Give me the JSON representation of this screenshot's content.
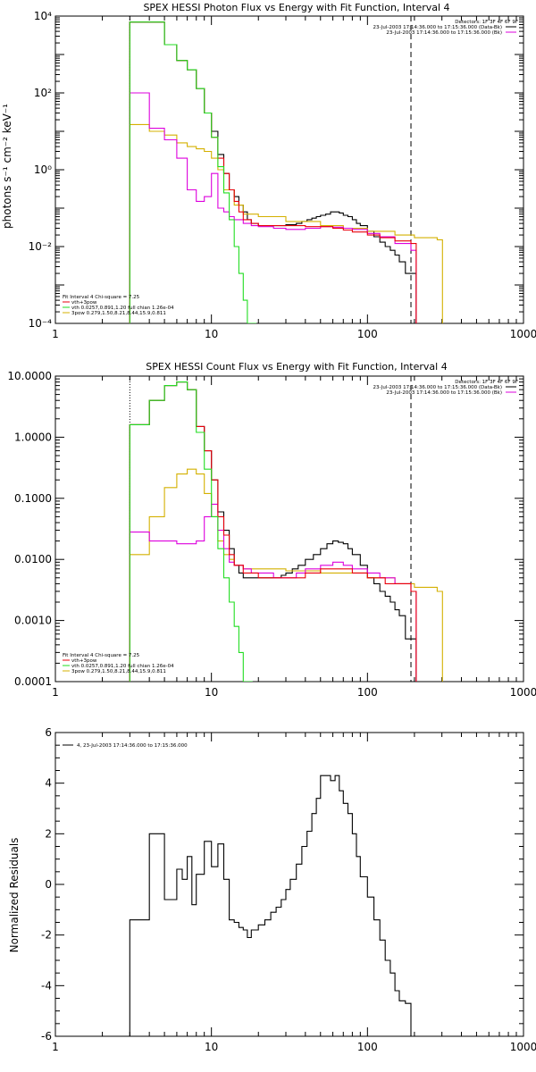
{
  "colors": {
    "black": "#000000",
    "red": "#e8000b",
    "green": "#22dd22",
    "yellow": "#d4b000",
    "magenta": "#dd00dd"
  },
  "chart_data": [
    {
      "type": "line",
      "title": "SPEX HESSI Photon Flux vs Energy with Fit Function, Interval 4",
      "xlabel": "",
      "ylabel": "photons s⁻¹ cm⁻² keV⁻¹",
      "xscale": "log",
      "yscale": "log",
      "xlim": [
        1,
        1000
      ],
      "ylim": [
        0.0001,
        10000
      ],
      "x_ticks": [
        {
          "value": 1,
          "label": "1"
        },
        {
          "value": 10,
          "label": "10"
        },
        {
          "value": 100,
          "label": "100"
        },
        {
          "value": 1000,
          "label": "1000"
        }
      ],
      "y_ticks": [
        {
          "value": 0.0001,
          "label": "10⁻⁴"
        },
        {
          "value": 0.01,
          "label": "10⁻²"
        },
        {
          "value": 1,
          "label": "10⁰"
        },
        {
          "value": 100,
          "label": "10²"
        },
        {
          "value": 10000,
          "label": "10⁴"
        }
      ],
      "vlines": [
        {
          "x": 3,
          "style": "dotted",
          "color": "black"
        },
        {
          "x": 190,
          "style": "dashed",
          "color": "black"
        }
      ],
      "legend_top": [
        "Detectors: 1F 3F 4F 6F 9F",
        "23-Jul-2003 17:14:36.000 to 17:15:36.000 (Data-Bk)",
        "23-Jul-2003 17:14:36.000 to 17:15:36.000 (Bk)"
      ],
      "legend_bottom": [
        "Fit Interval 4   Chi-square = 7.25",
        "vth+3pow",
        "vth 0.0257,0.891,1.20  full chian 1.26e-04",
        "3pow 0.279,1.50,8.21,8.44,15.9,0.811"
      ],
      "series": [
        {
          "color": "black",
          "x": [
            3,
            4,
            5,
            6,
            7,
            8,
            9,
            10,
            11,
            12,
            13,
            14,
            15,
            16,
            17,
            18,
            20,
            22,
            24,
            26,
            28,
            30,
            32,
            35,
            38,
            41,
            44,
            47,
            50,
            54,
            58,
            62,
            66,
            70,
            75,
            80,
            85,
            90,
            100,
            110,
            120,
            130,
            140,
            150,
            160,
            175,
            190
          ],
          "y": [
            7000,
            7000,
            1800,
            700,
            400,
            130,
            30,
            10,
            2.5,
            0.8,
            0.3,
            0.2,
            0.12,
            0.08,
            0.05,
            0.04,
            0.035,
            0.035,
            0.035,
            0.035,
            0.035,
            0.037,
            0.037,
            0.04,
            0.045,
            0.05,
            0.055,
            0.06,
            0.065,
            0.07,
            0.08,
            0.08,
            0.075,
            0.065,
            0.06,
            0.05,
            0.04,
            0.035,
            0.025,
            0.018,
            0.013,
            0.01,
            0.008,
            0.006,
            0.004,
            0.002,
            0.002
          ]
        },
        {
          "color": "red",
          "x": [
            3,
            4,
            5,
            6,
            7,
            8,
            9,
            10,
            11,
            12,
            13,
            14,
            15,
            16,
            18,
            20,
            22,
            25,
            30,
            40,
            50,
            60,
            70,
            80,
            100,
            120,
            150,
            190
          ],
          "y": [
            7000,
            7000,
            1800,
            700,
            400,
            130,
            30,
            7,
            2,
            0.8,
            0.3,
            0.15,
            0.08,
            0.05,
            0.04,
            0.035,
            0.035,
            0.035,
            0.035,
            0.033,
            0.033,
            0.03,
            0.027,
            0.024,
            0.02,
            0.017,
            0.014,
            0.012
          ]
        },
        {
          "color": "green",
          "x": [
            3,
            4,
            5,
            6,
            7,
            8,
            9,
            10,
            11,
            12,
            13,
            14,
            15,
            16,
            17,
            18
          ],
          "y": [
            7000,
            7000,
            1800,
            700,
            400,
            130,
            30,
            7,
            1.2,
            0.25,
            0.05,
            0.01,
            0.002,
            0.0004,
            0.0001,
            0.0001
          ]
        },
        {
          "color": "yellow",
          "x": [
            3,
            4,
            5,
            6,
            7,
            8,
            9,
            10,
            11,
            12,
            14,
            16,
            20,
            30,
            50,
            70,
            100,
            150,
            200,
            280
          ],
          "y": [
            15,
            10,
            8,
            5,
            4,
            3.5,
            3,
            2,
            1,
            0.3,
            0.12,
            0.07,
            0.06,
            0.045,
            0.035,
            0.03,
            0.025,
            0.02,
            0.017,
            0.015
          ]
        },
        {
          "color": "magenta",
          "x": [
            3,
            4,
            5,
            6,
            7,
            8,
            9,
            10,
            11,
            12,
            13,
            14,
            16,
            18,
            20,
            25,
            30,
            40,
            50,
            60,
            70,
            80,
            100,
            120,
            150,
            190
          ],
          "y": [
            100,
            12,
            6,
            2,
            0.3,
            0.15,
            0.2,
            0.8,
            0.1,
            0.08,
            0.06,
            0.05,
            0.04,
            0.035,
            0.033,
            0.03,
            0.028,
            0.03,
            0.033,
            0.032,
            0.03,
            0.028,
            0.022,
            0.018,
            0.012,
            0.008
          ]
        }
      ]
    },
    {
      "type": "line",
      "title": "SPEX HESSI Count Flux vs Energy with Fit Function, Interval 4",
      "xlabel": "",
      "ylabel": "",
      "xscale": "log",
      "yscale": "log",
      "xlim": [
        1,
        1000
      ],
      "ylim": [
        0.0001,
        10
      ],
      "x_ticks": [
        {
          "value": 1,
          "label": "1"
        },
        {
          "value": 10,
          "label": "10"
        },
        {
          "value": 100,
          "label": "100"
        },
        {
          "value": 1000,
          "label": "1000"
        }
      ],
      "y_ticks": [
        {
          "value": 0.0001,
          "label": "0.0001"
        },
        {
          "value": 0.001,
          "label": "0.0010"
        },
        {
          "value": 0.01,
          "label": "0.0100"
        },
        {
          "value": 0.1,
          "label": "0.1000"
        },
        {
          "value": 1,
          "label": "1.0000"
        },
        {
          "value": 10,
          "label": "10.0000"
        }
      ],
      "vlines": [
        {
          "x": 3,
          "style": "dotted",
          "color": "black"
        },
        {
          "x": 190,
          "style": "dashed",
          "color": "black"
        }
      ],
      "legend_top": [
        "Detectors: 1F 3F 4F 6F 9F",
        "23-Jul-2003 17:14:36.000 to 17:15:36.000 (Data-Bk)",
        "23-Jul-2003 17:14:36.000 to 17:15:36.000 (Bk)"
      ],
      "legend_bottom": [
        "Fit Interval 4   Chi-square = 7.25",
        "vth+3pow",
        "vth 0.0257,0.891,1.20  full chian 1.26e-04",
        "3pow 0.279,1.50,8.21,8.44,15.9,0.811"
      ],
      "series": [
        {
          "color": "black",
          "x": [
            3,
            3.5,
            4,
            5,
            6,
            7,
            8,
            9,
            10,
            11,
            12,
            13,
            14,
            15,
            16,
            18,
            20,
            22,
            25,
            28,
            30,
            33,
            36,
            40,
            45,
            50,
            55,
            60,
            65,
            70,
            75,
            80,
            90,
            100,
            110,
            120,
            130,
            140,
            150,
            160,
            175,
            190
          ],
          "y": [
            1.6,
            1.6,
            4,
            7,
            8,
            6,
            1.5,
            0.6,
            0.2,
            0.06,
            0.03,
            0.015,
            0.008,
            0.006,
            0.005,
            0.005,
            0.005,
            0.005,
            0.005,
            0.0055,
            0.006,
            0.007,
            0.008,
            0.01,
            0.012,
            0.015,
            0.018,
            0.02,
            0.019,
            0.018,
            0.015,
            0.012,
            0.008,
            0.005,
            0.004,
            0.003,
            0.0025,
            0.002,
            0.0015,
            0.0012,
            0.0005,
            0.0005
          ]
        },
        {
          "color": "red",
          "x": [
            3,
            3.5,
            4,
            5,
            6,
            7,
            8,
            9,
            10,
            11,
            12,
            13,
            14,
            16,
            20,
            25,
            30,
            40,
            50,
            60,
            80,
            100,
            130,
            190
          ],
          "y": [
            1.6,
            1.6,
            4,
            7,
            8,
            6,
            1.5,
            0.6,
            0.2,
            0.05,
            0.025,
            0.012,
            0.008,
            0.006,
            0.005,
            0.005,
            0.005,
            0.006,
            0.007,
            0.007,
            0.006,
            0.005,
            0.004,
            0.003
          ]
        },
        {
          "color": "green",
          "x": [
            3,
            3.5,
            4,
            5,
            6,
            7,
            8,
            9,
            10,
            11,
            12,
            13,
            14,
            15,
            16,
            17
          ],
          "y": [
            1.6,
            1.6,
            4,
            7,
            8,
            6,
            1.2,
            0.3,
            0.05,
            0.015,
            0.005,
            0.002,
            0.0008,
            0.0003,
            0.0001,
            0.0001
          ]
        },
        {
          "color": "yellow",
          "x": [
            3,
            3.5,
            4,
            5,
            6,
            7,
            8,
            9,
            10,
            11,
            12,
            13,
            14,
            16,
            20,
            30,
            50,
            100,
            150,
            200,
            280
          ],
          "y": [
            0.012,
            0.012,
            0.05,
            0.15,
            0.25,
            0.3,
            0.25,
            0.12,
            0.05,
            0.02,
            0.012,
            0.01,
            0.008,
            0.007,
            0.007,
            0.0065,
            0.006,
            0.005,
            0.004,
            0.0035,
            0.003
          ]
        },
        {
          "color": "magenta",
          "x": [
            3,
            3.5,
            4,
            5,
            6,
            7,
            8,
            9,
            10,
            11,
            12,
            13,
            14,
            16,
            18,
            20,
            25,
            30,
            35,
            40,
            50,
            60,
            70,
            80,
            100,
            120,
            150,
            190
          ],
          "y": [
            0.028,
            0.028,
            0.02,
            0.02,
            0.018,
            0.018,
            0.02,
            0.05,
            0.08,
            0.03,
            0.015,
            0.009,
            0.008,
            0.007,
            0.006,
            0.006,
            0.005,
            0.005,
            0.006,
            0.007,
            0.008,
            0.009,
            0.008,
            0.007,
            0.006,
            0.005,
            0.004,
            0.003
          ]
        }
      ]
    },
    {
      "type": "line",
      "title": "",
      "xlabel": "",
      "ylabel": "Normalized Residuals",
      "xscale": "log",
      "yscale": "linear",
      "xlim": [
        1,
        1000
      ],
      "ylim": [
        -6,
        6
      ],
      "x_ticks": [
        {
          "value": 1,
          "label": "1"
        },
        {
          "value": 10,
          "label": "10"
        },
        {
          "value": 100,
          "label": "100"
        },
        {
          "value": 1000,
          "label": "1000"
        }
      ],
      "y_ticks": [
        {
          "value": -6,
          "label": "-6"
        },
        {
          "value": -4,
          "label": "-4"
        },
        {
          "value": -2,
          "label": "-2"
        },
        {
          "value": 0,
          "label": "0"
        },
        {
          "value": 2,
          "label": "2"
        },
        {
          "value": 4,
          "label": "4"
        },
        {
          "value": 6,
          "label": "6"
        }
      ],
      "vlines": [],
      "legend_top": [],
      "legend_bottom": [],
      "legend_residual": "4, 23-Jul-2003 17:14:36.000 to 17:15:36.000",
      "series": [
        {
          "color": "black",
          "x": [
            3,
            4,
            5,
            5.5,
            6,
            6.5,
            7,
            7.5,
            8,
            9,
            10,
            11,
            12,
            13,
            14,
            15,
            16,
            17,
            18,
            19,
            20,
            22,
            24,
            26,
            28,
            30,
            32,
            35,
            38,
            41,
            44,
            47,
            50,
            54,
            58,
            62,
            66,
            70,
            75,
            80,
            85,
            90,
            100,
            110,
            120,
            130,
            140,
            150,
            160,
            175,
            190
          ],
          "y": [
            -1.4,
            2.0,
            -0.6,
            -0.6,
            0.6,
            0.2,
            1.1,
            -0.8,
            0.4,
            1.7,
            0.7,
            1.6,
            0.2,
            -1.4,
            -1.5,
            -1.7,
            -1.8,
            -2.1,
            -1.8,
            -1.8,
            -1.6,
            -1.4,
            -1.1,
            -0.9,
            -0.6,
            -0.2,
            0.2,
            0.8,
            1.5,
            2.1,
            2.8,
            3.4,
            4.3,
            4.3,
            4.1,
            4.3,
            3.7,
            3.2,
            2.8,
            2.0,
            1.1,
            0.3,
            -0.5,
            -1.4,
            -2.2,
            -3.0,
            -3.5,
            -4.2,
            -4.6,
            -4.7,
            -6.0
          ]
        }
      ]
    }
  ]
}
